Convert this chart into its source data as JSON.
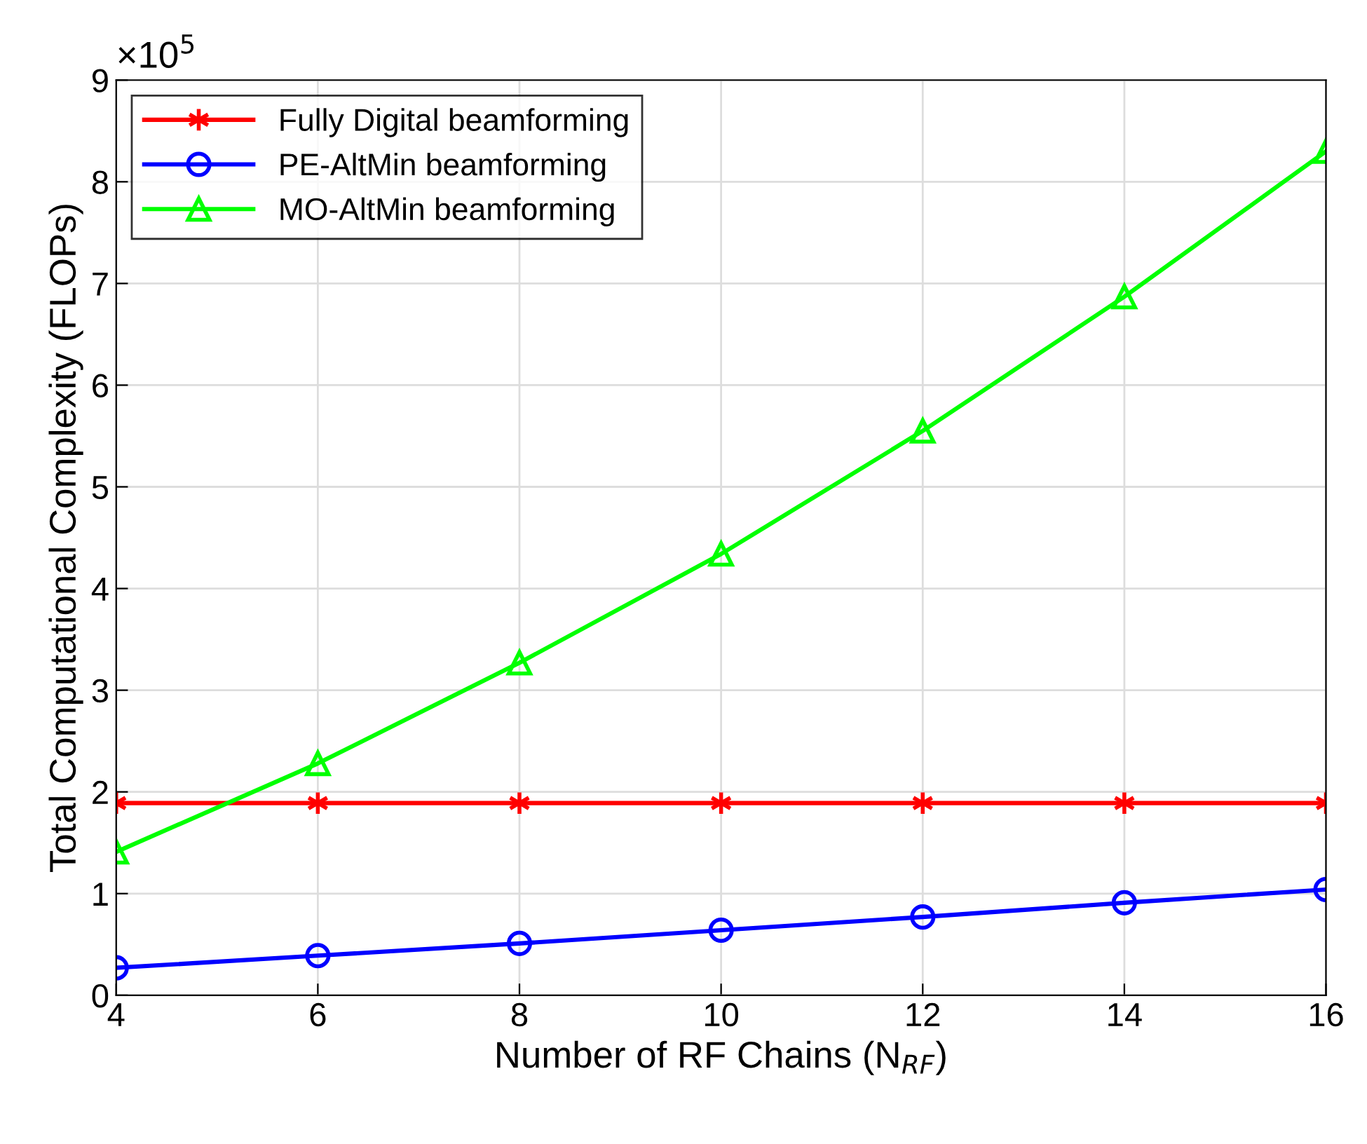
{
  "chart_data": {
    "type": "line",
    "xlabel": "Number of RF Chains (N$_{RF}$)",
    "ylabel": "Total Computational Complexity (FLOPs)",
    "annotations": [
      "×10$^{5}$"
    ],
    "x": [
      4,
      6,
      8,
      10,
      12,
      14,
      16
    ],
    "series": [
      {
        "name": "Fully Digital beamforming",
        "color": "#ff0000",
        "marker": "cross",
        "values": [
          1.89,
          1.89,
          1.89,
          1.89,
          1.89,
          1.89,
          1.89
        ]
      },
      {
        "name": "PE-AltMin beamforming",
        "color": "#0000ff",
        "marker": "circle",
        "values": [
          0.27,
          0.39,
          0.51,
          0.64,
          0.77,
          0.91,
          1.04
        ]
      },
      {
        "name": "MO-AltMin beamforming",
        "color": "#00ff00",
        "marker": "triangle",
        "values": [
          1.41,
          2.28,
          3.27,
          4.34,
          5.55,
          6.87,
          8.3
        ]
      }
    ],
    "xlim": [
      4,
      16
    ],
    "xticks": [
      4,
      6,
      8,
      10,
      12,
      14,
      16
    ],
    "ylim": [
      0,
      9
    ],
    "yticks": [
      0,
      1,
      2,
      3,
      4,
      5,
      6,
      7,
      8,
      9
    ],
    "grid": true,
    "legend": "top left",
    "line_style": "solid"
  }
}
